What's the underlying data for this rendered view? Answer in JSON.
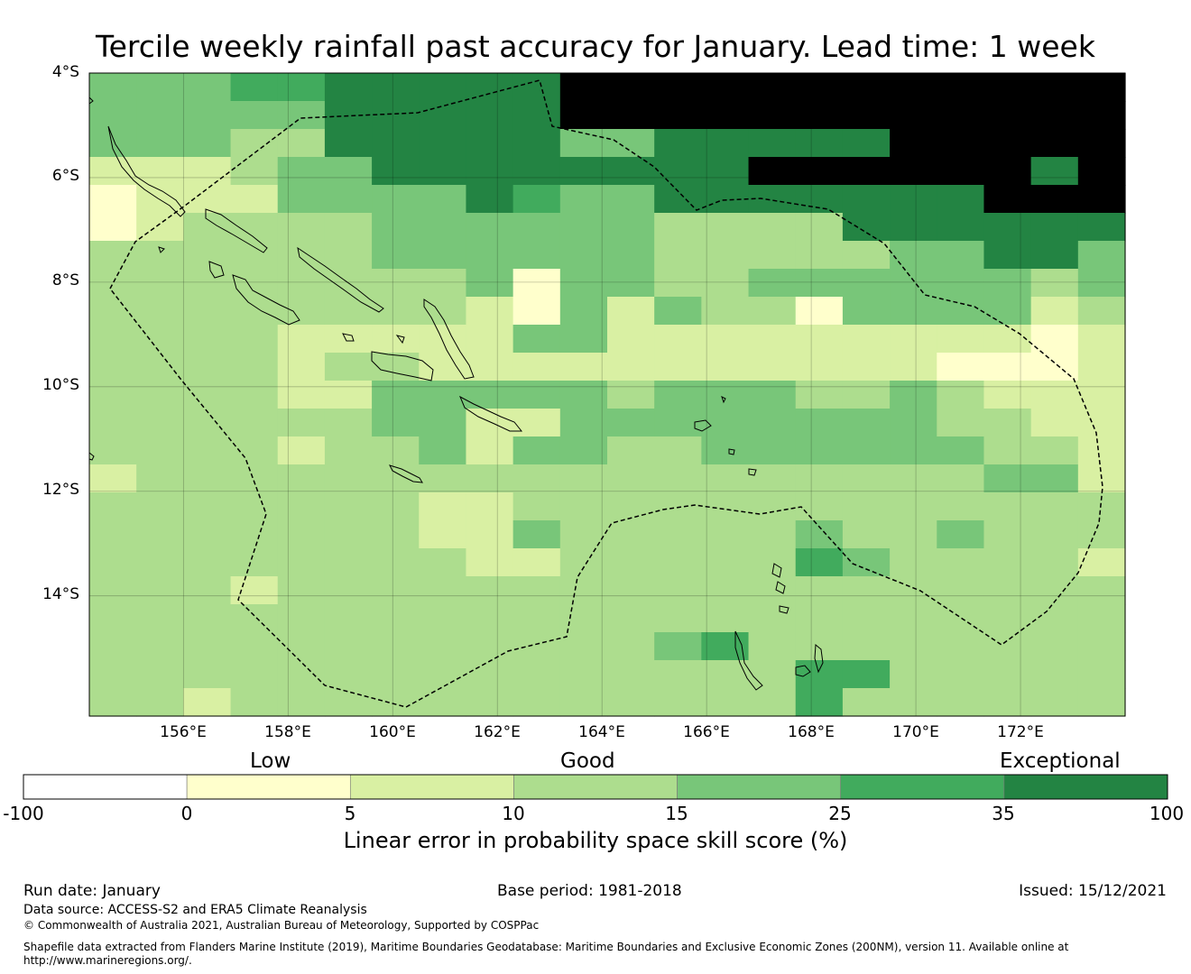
{
  "title": "Tercile weekly rainfall past accuracy for January. Lead time: 1 week",
  "map": {
    "lat_labels": [
      "4°S",
      "6°S",
      "8°S",
      "10°S",
      "12°S",
      "14°S"
    ],
    "lon_labels": [
      "156°E",
      "158°E",
      "160°E",
      "162°E",
      "164°E",
      "166°E",
      "168°E",
      "170°E",
      "172°E"
    ],
    "lat_range": [
      -4,
      -16.3
    ],
    "lon_range": [
      154.2,
      174.0
    ],
    "grid_cell_deg": 0.83,
    "skill_grid": [
      "3334455555666666666666",
      "3333355555666666666666",
      "3332255555335555566666",
      "1112335555555566666656",
      "0111333354335555555666",
      "0122223333332222555555",
      "2222223333332222233553",
      "2222222230332233333323",
      "2222222210313220333312",
      "2222111113311111111101",
      "2222122111111111110001",
      "2222113333323332232111",
      "2222223311333333332211",
      "2222122313322333333221",
      "1222222222222222222331",
      "2222222112222222222222",
      "2222222113222223223222",
      "2222222211222224322221",
      "2221222222222222222222",
      "2222222222222222222222",
      "2222222222223422222222",
      "2222222222222224422222",
      "2212222222222224222222"
    ]
  },
  "legend": {
    "category_labels": [
      "Low",
      "Good",
      "Exceptional"
    ],
    "tick_labels": [
      "-100",
      "0",
      "5",
      "10",
      "15",
      "25",
      "35",
      "100"
    ],
    "colors": [
      "#ffffff",
      "#ffffcc",
      "#d9f0a3",
      "#addd8e",
      "#78c679",
      "#41ab5d",
      "#238443"
    ],
    "axis_label": "Linear error in probability space skill score (%)"
  },
  "footer": {
    "run_date": "Run date: January",
    "base_period": "Base period: 1981-2018",
    "issued": "Issued: 15/12/2021",
    "data_source": "Data source: ACCESS-S2 and ERA5 Climate Reanalysis",
    "copyright": "© Commonwealth of Australia 2021, Australian Bureau of Meteorology, Supported by COSPPac",
    "shapefile_line1": "Shapefile data extracted from Flanders Marine Institute (2019), Maritime Boundaries Geodatabase: Maritime Boundaries and Exclusive Economic Zones (200NM), version 11. Available online at",
    "shapefile_line2": "http://www.marineregions.org/."
  }
}
